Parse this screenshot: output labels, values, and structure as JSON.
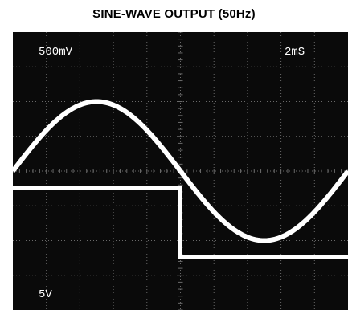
{
  "figure": {
    "title": "SINE-WAVE OUTPUT (50Hz)"
  },
  "colors": {
    "background": "#ffffff",
    "screen": "#0a0a0a",
    "grid": "#6a6a6a",
    "trace": "#ffffff"
  },
  "chart_data": {
    "type": "line",
    "title": "SINE-WAVE OUTPUT (50Hz)",
    "xlabel": "",
    "ylabel": "",
    "grid": true,
    "time_per_div_label": "2mS",
    "channel1_volts_per_div_label": "500mV",
    "channel2_volts_per_div_label": "5V",
    "frequency_hz": 50,
    "x_units": "ms",
    "xlim": [
      0,
      20
    ],
    "series": [
      {
        "name": "",
        "shape": "sine",
        "units": "V",
        "amplitude_v": 1.0,
        "offset_v": 0.0,
        "phase_deg": 0,
        "ylim": [
          -2.0,
          2.0
        ]
      },
      {
        "name": "",
        "shape": "square",
        "units": "V",
        "high_v": 5.0,
        "low_v": 0.0,
        "transition_ms": 10,
        "ylim": [
          -3.8,
          16.2
        ]
      }
    ]
  }
}
